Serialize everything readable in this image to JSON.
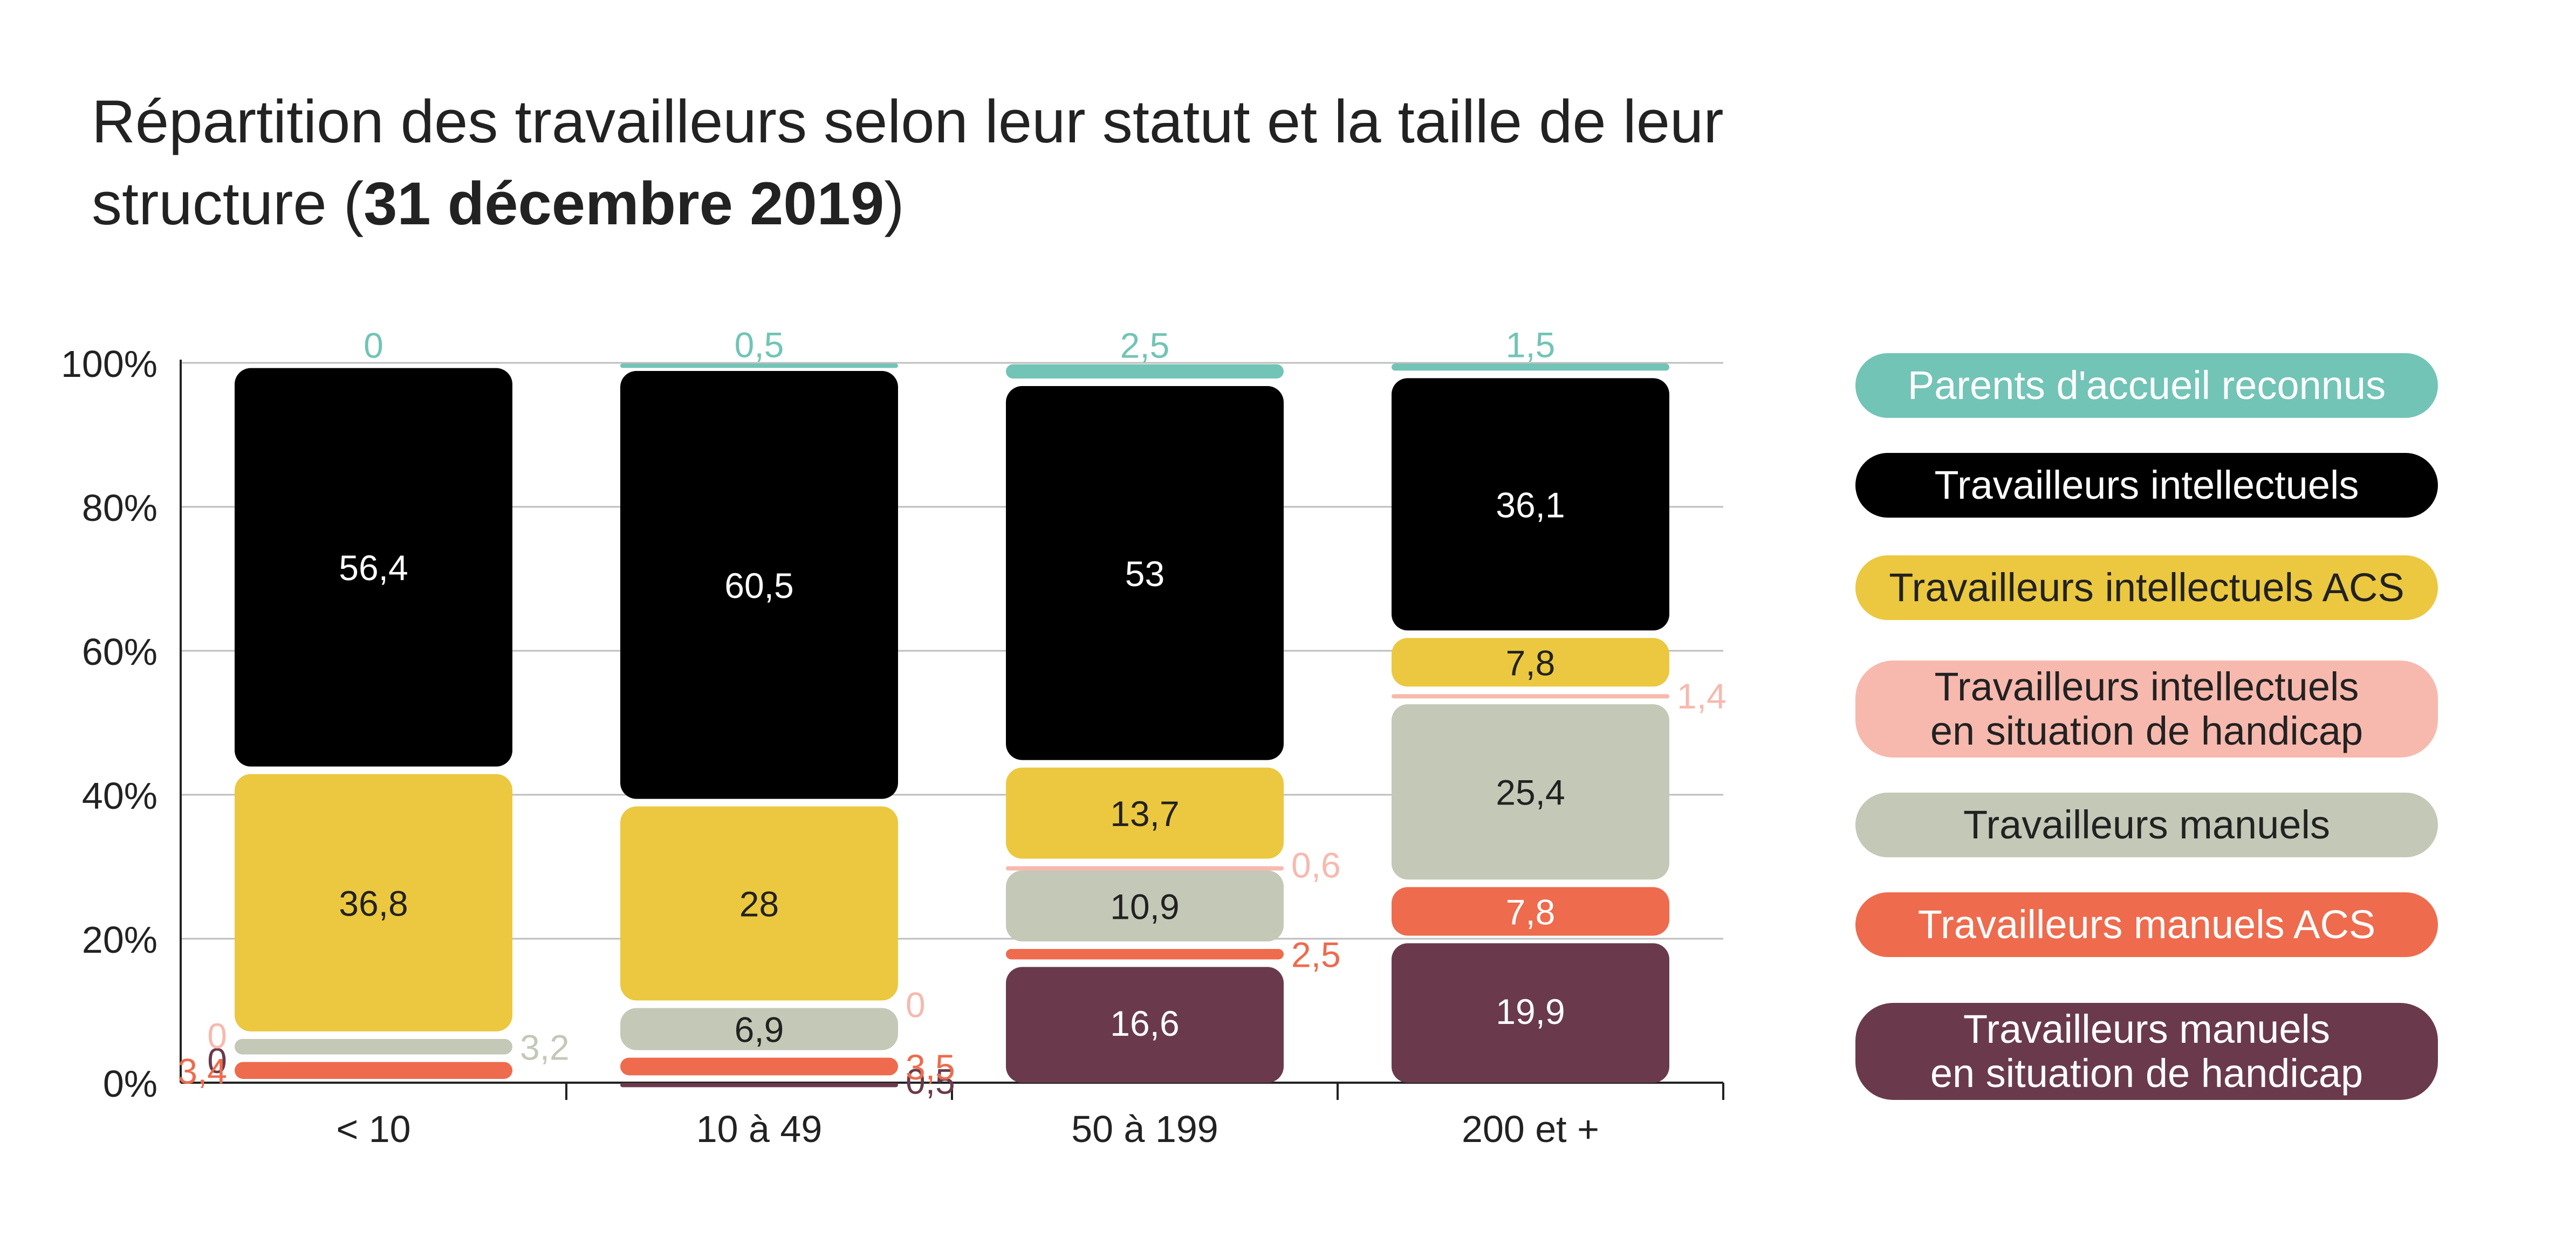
{
  "title": {
    "text_before": "Répartition des travailleurs selon leur statut et la taille de leur structure (",
    "text_bold": "31 décembre 2019",
    "text_after": ")"
  },
  "chart_data": {
    "type": "bar",
    "stacked": true,
    "title": "Répartition des travailleurs selon leur statut et la taille de leur structure (31 décembre 2019)",
    "categories": [
      "< 10",
      "10 à 49",
      "50 à 199",
      "200 et +"
    ],
    "yaxis_ticks": [
      "0%",
      "20%",
      "40%",
      "60%",
      "80%",
      "100%"
    ],
    "ylim": [
      0,
      100
    ],
    "grid": true,
    "legend_position": "right",
    "series": [
      {
        "name": "Travailleurs manuels\nen situation de handicap",
        "color": "#6a3a4c",
        "text_color": "#ffffff",
        "values": [
          0,
          0.5,
          16.6,
          19.9
        ],
        "labels": [
          "0",
          "0,5",
          "16,6",
          "19,9"
        ]
      },
      {
        "name": "Travailleurs manuels ACS",
        "color": "#ee6b4d",
        "text_color": "#ffffff",
        "values": [
          3.4,
          3.5,
          2.5,
          7.8
        ],
        "labels": [
          "3,4",
          "3,5",
          "2,5",
          "7,8"
        ]
      },
      {
        "name": "Travailleurs manuels",
        "color": "#c4c8b7",
        "text_color": "#222222",
        "values": [
          3.2,
          6.9,
          10.9,
          25.4
        ],
        "labels": [
          "3,2",
          "6,9",
          "10,9",
          "25,4"
        ]
      },
      {
        "name": "Travailleurs intellectuels\nen situation de handicap",
        "color": "#f7b9ae",
        "text_color": "#222222",
        "values": [
          0,
          0,
          0.6,
          1.4
        ],
        "labels": [
          "0",
          "0",
          "0,6",
          "1,4"
        ]
      },
      {
        "name": "Travailleurs intellectuels ACS",
        "color": "#ebc83f",
        "text_color": "#222222",
        "values": [
          36.8,
          28,
          13.7,
          7.8
        ],
        "labels": [
          "36,8",
          "28",
          "13,7",
          "7,8"
        ]
      },
      {
        "name": "Travailleurs intellectuels",
        "color": "#000000",
        "text_color": "#ffffff",
        "values": [
          56.4,
          60.5,
          53,
          36.1
        ],
        "labels": [
          "56,4",
          "60,5",
          "53",
          "36,1"
        ]
      },
      {
        "name": "Parents d'accueil reconnus",
        "color": "#72c4b6",
        "text_color": "#ffffff",
        "values": [
          0,
          0.5,
          2.5,
          1.5
        ],
        "labels": [
          "0",
          "0,5",
          "2,5",
          "1,5"
        ]
      }
    ]
  }
}
